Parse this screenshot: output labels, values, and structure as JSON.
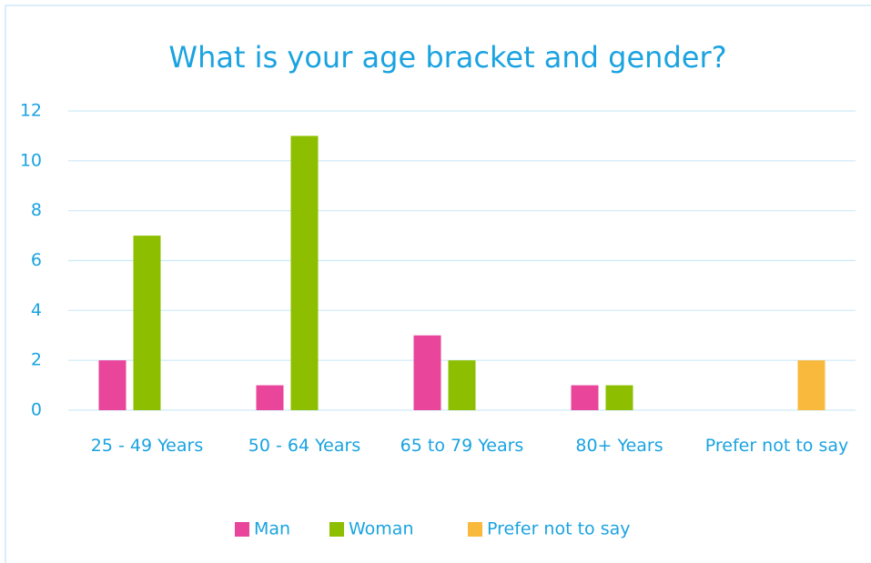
{
  "chart_data": {
    "type": "bar",
    "title": "What is your age bracket and gender?",
    "categories": [
      "25 - 49 Years",
      "50 - 64 Years",
      "65 to 79 Years",
      "80+ Years",
      "Prefer not to say"
    ],
    "series": [
      {
        "name": "Man",
        "color": "#e8459b",
        "values": [
          2,
          1,
          3,
          1,
          0
        ]
      },
      {
        "name": "Woman",
        "color": "#8dbf00",
        "values": [
          7,
          11,
          2,
          1,
          0
        ]
      },
      {
        "name": "Prefer not to say",
        "color": "#f8b93d",
        "values": [
          0,
          0,
          0,
          0,
          2
        ]
      }
    ],
    "ylim": [
      0,
      12
    ],
    "yticks": [
      0,
      2,
      4,
      6,
      8,
      10,
      12
    ],
    "grid": true,
    "legend": "bottom"
  }
}
